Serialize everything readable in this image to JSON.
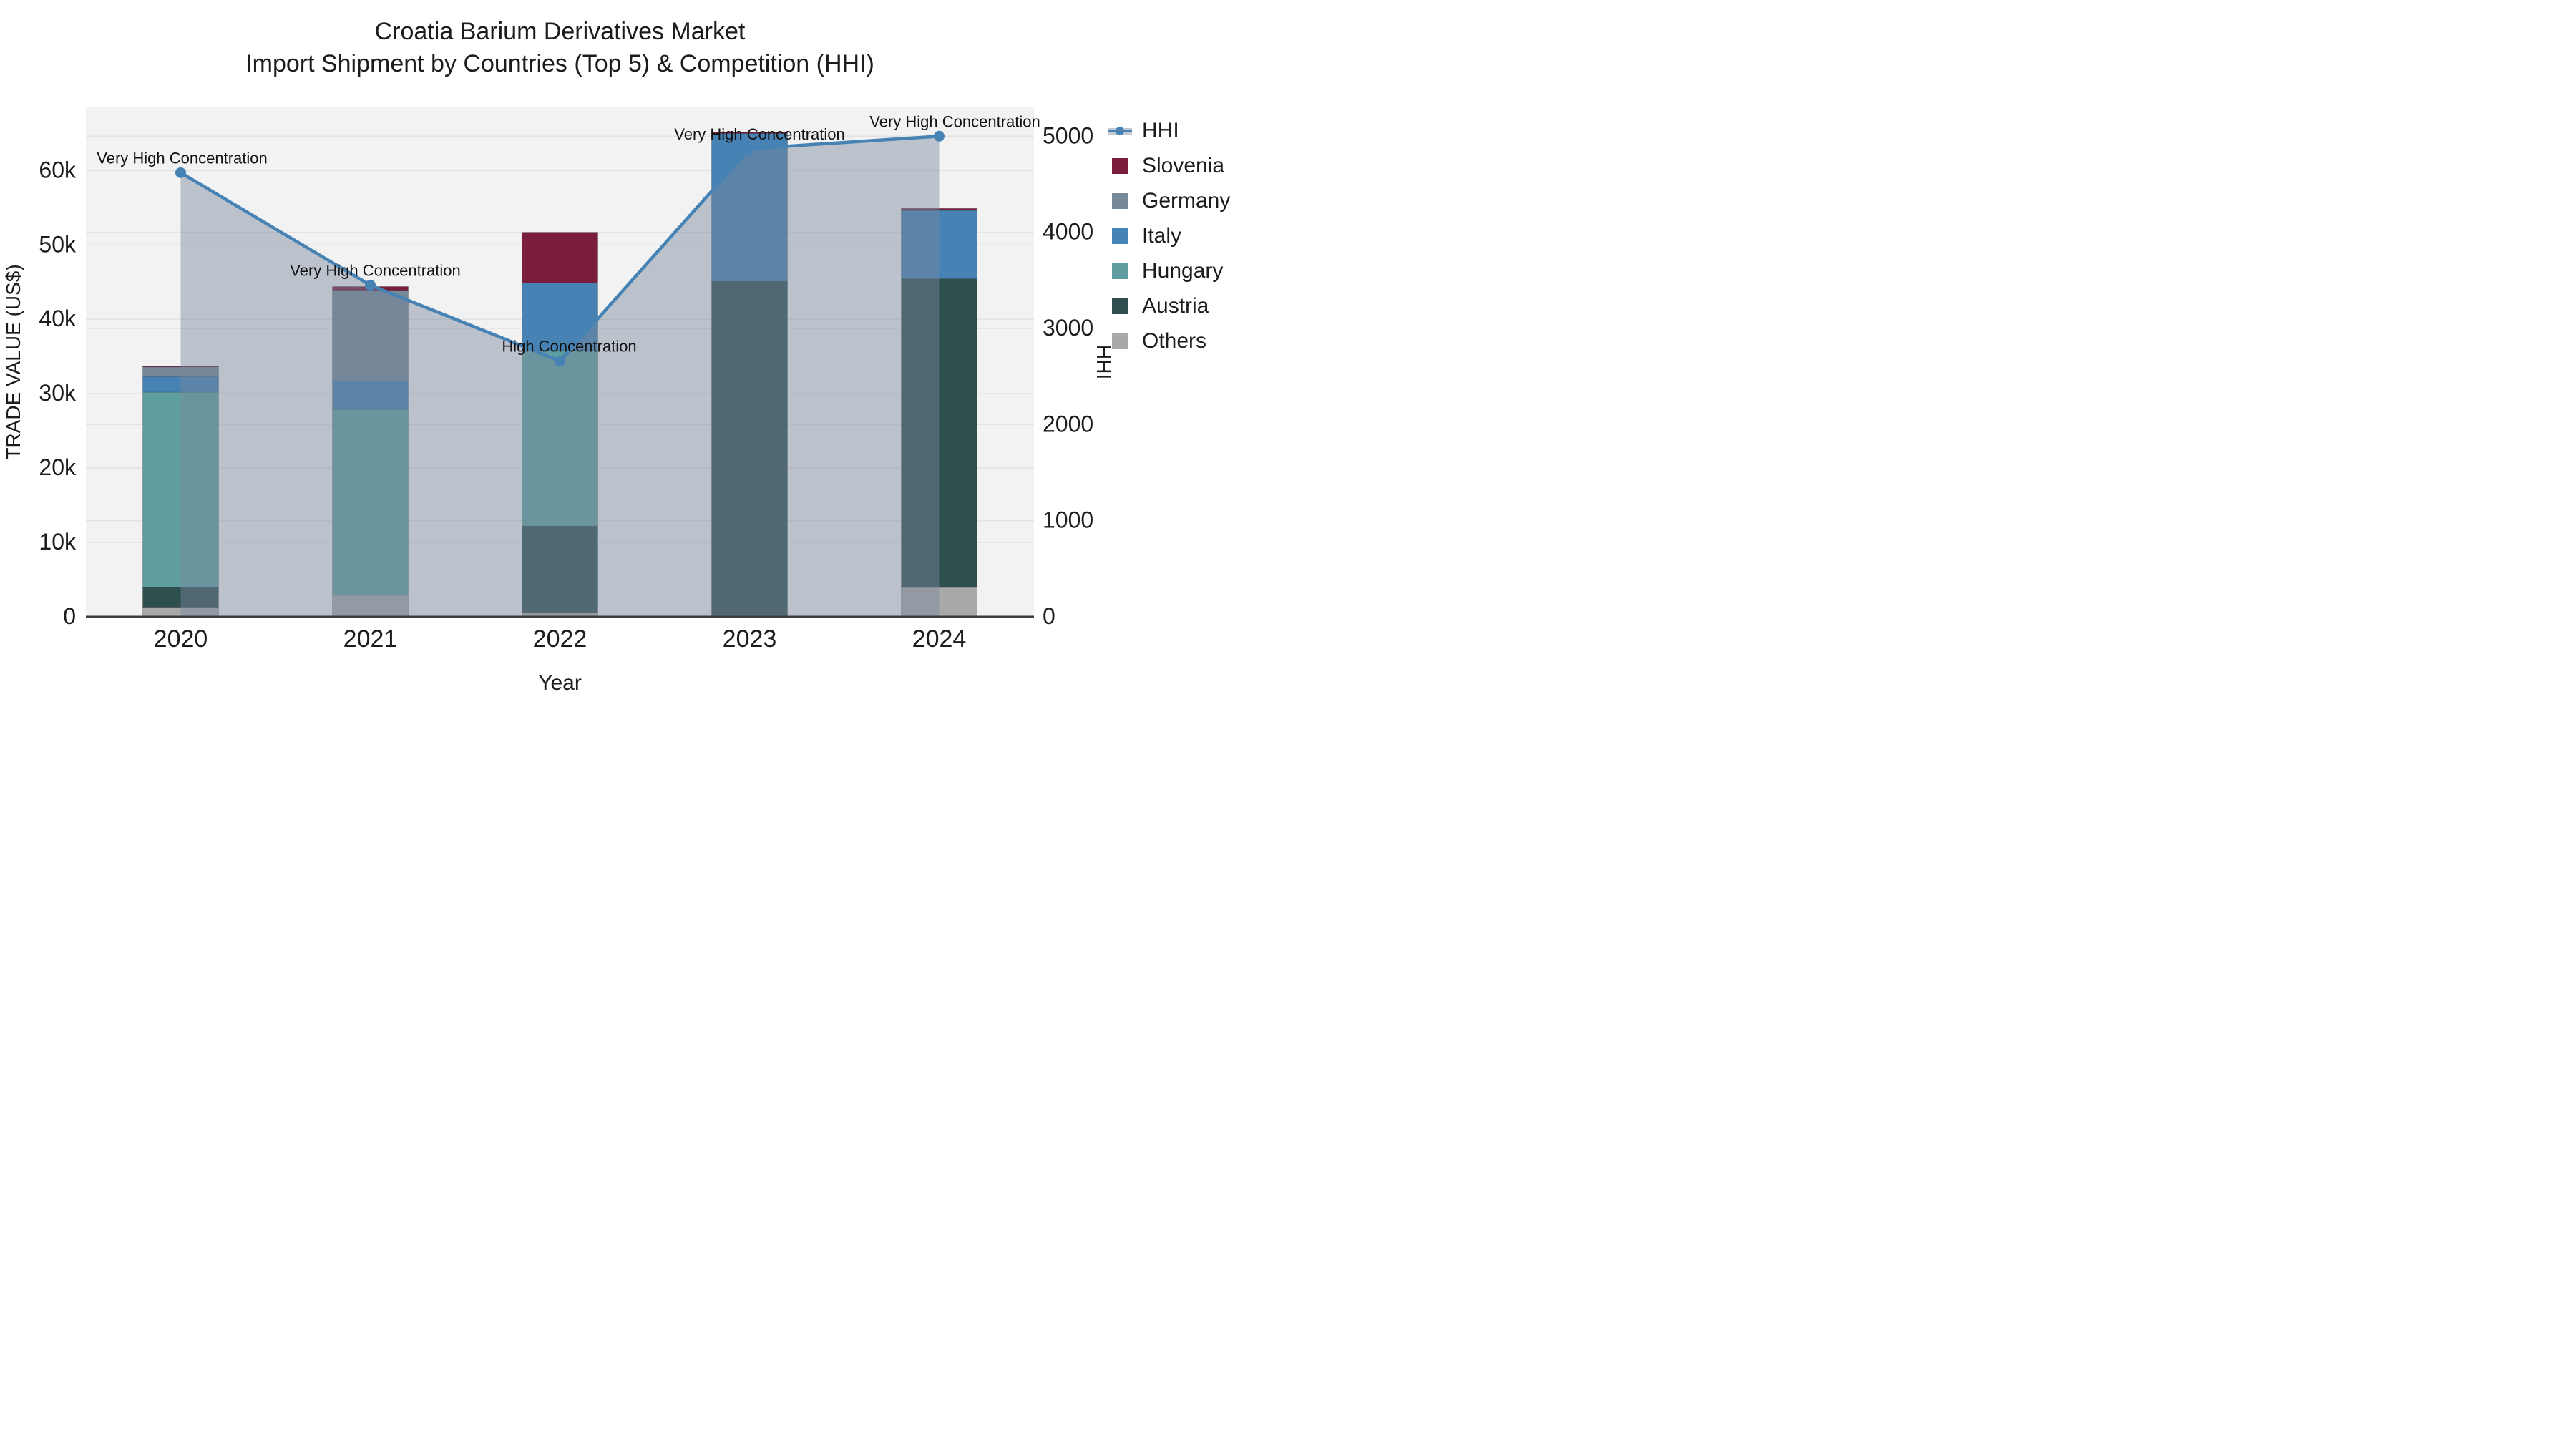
{
  "title": {
    "line1": "Croatia Barium Derivatives Market",
    "line2": "Import Shipment by Countries (Top 5) & Competition (HHI)"
  },
  "chart_data": {
    "type": "bar+line",
    "categories": [
      "2020",
      "2021",
      "2022",
      "2023",
      "2024"
    ],
    "bar_stack_order_note": "bottom to top",
    "series": [
      {
        "name": "Others",
        "color": "#A9A9A9",
        "values": [
          1300,
          2900,
          600,
          0,
          3950
        ]
      },
      {
        "name": "Austria",
        "color": "#2F4F4F",
        "values": [
          2700,
          0,
          11600,
          45100,
          41500
        ]
      },
      {
        "name": "Hungary",
        "color": "#5F9EA0",
        "values": [
          26200,
          25000,
          23600,
          0,
          0
        ]
      },
      {
        "name": "Italy",
        "color": "#4682B4",
        "values": [
          2100,
          3800,
          9100,
          19900,
          9200
        ]
      },
      {
        "name": "Germany",
        "color": "#778899",
        "values": [
          1300,
          12200,
          0,
          0,
          0
        ]
      },
      {
        "name": "Slovenia",
        "color": "#7A1E3C",
        "values": [
          100,
          500,
          6800,
          150,
          250
        ]
      }
    ],
    "line_series": {
      "name": "HHI",
      "color": "#4682B4",
      "fill_color": "rgba(120,135,155,0.45)",
      "values": [
        4620,
        3450,
        2660,
        4870,
        5000
      ]
    },
    "annotations": [
      {
        "year": "2020",
        "text": "Very High Concentration"
      },
      {
        "year": "2021",
        "text": "Very High Concentration"
      },
      {
        "year": "2022",
        "text": "High Concentration"
      },
      {
        "year": "2023",
        "text": "Very High Concentration"
      },
      {
        "year": "2024",
        "text": "Very High Concentration"
      }
    ],
    "xlabel": "Year",
    "ylabel_left": "TRADE VALUE (US$)",
    "ylabel_right": "HHI",
    "y_left": {
      "tick_labels": [
        "0",
        "10k",
        "20k",
        "30k",
        "40k",
        "50k",
        "60k"
      ],
      "tick_values": [
        0,
        10000,
        20000,
        30000,
        40000,
        50000,
        60000
      ],
      "max": 68500
    },
    "y_right": {
      "tick_labels": [
        "0",
        "1000",
        "2000",
        "3000",
        "4000",
        "5000"
      ],
      "tick_values": [
        0,
        1000,
        2000,
        3000,
        4000,
        5000
      ],
      "max": 5300
    },
    "legend_order": [
      "HHI",
      "Slovenia",
      "Germany",
      "Italy",
      "Hungary",
      "Austria",
      "Others"
    ],
    "grid": true,
    "legend_position": "right",
    "plot_bg": "#F2F2F2",
    "grid_color": "#E2E2E2",
    "axis_line_color": "#3F3F3F",
    "text_color": "#1c1c1c"
  }
}
